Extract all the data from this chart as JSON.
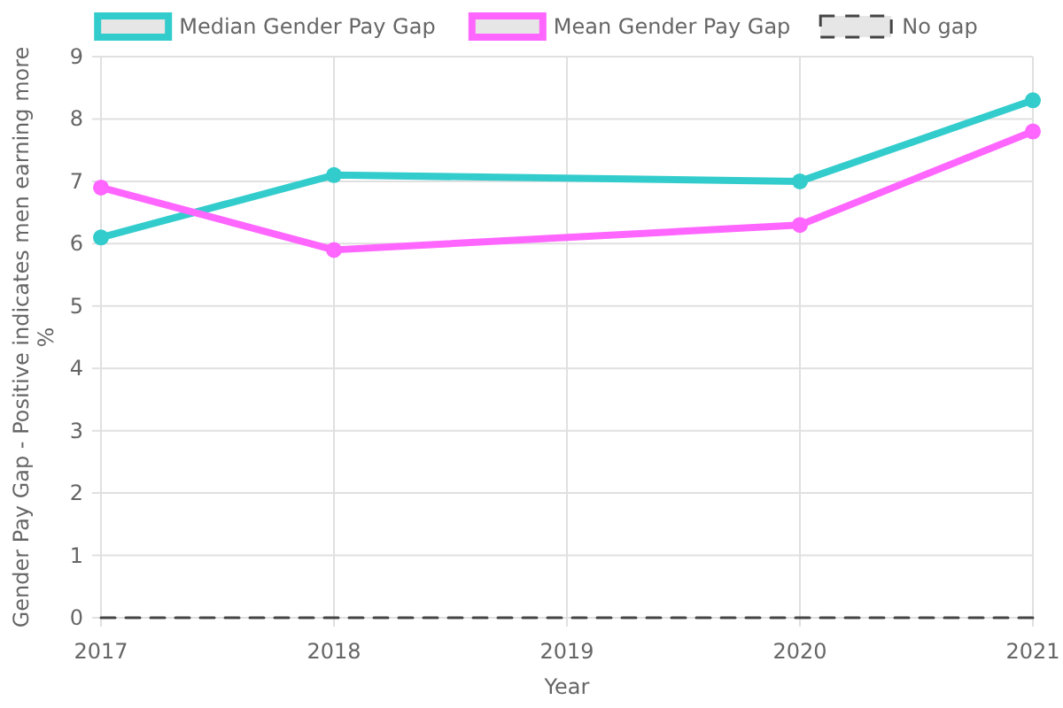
{
  "chart_data": {
    "type": "line",
    "xlabel": "Year",
    "ylabel": "Gender Pay Gap - Positive indicates men earning more\n%",
    "x": [
      2017,
      2018,
      2020,
      2021
    ],
    "xlim": [
      2017,
      2021
    ],
    "xticks": [
      2017,
      2018,
      2019,
      2020,
      2021
    ],
    "ylim": [
      0,
      9
    ],
    "yticks": [
      0,
      1,
      2,
      3,
      4,
      5,
      6,
      7,
      8,
      9
    ],
    "grid": true,
    "legend": "top",
    "series": [
      {
        "name": "Median Gender Pay Gap",
        "color": "#33cccc",
        "values": [
          6.1,
          7.1,
          7.0,
          8.3
        ],
        "marker": "circle",
        "line_style": "solid"
      },
      {
        "name": "Mean Gender Pay Gap",
        "color": "#ff66ff",
        "values": [
          6.9,
          5.9,
          6.3,
          7.8
        ],
        "marker": "circle",
        "line_style": "solid"
      },
      {
        "name": "No gap",
        "color": "#444444",
        "values": [
          0,
          0,
          0,
          0
        ],
        "marker": "none",
        "line_style": "dashed"
      }
    ]
  }
}
